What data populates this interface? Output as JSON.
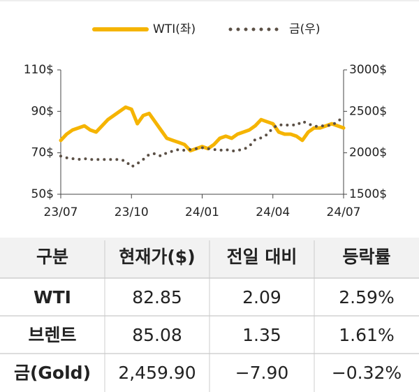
{
  "chart_data": {
    "type": "line",
    "x": [
      0,
      0.25,
      0.5,
      0.75,
      1,
      1.25,
      1.5,
      1.75,
      2,
      2.25,
      2.5,
      2.75,
      3,
      3.25,
      3.5,
      3.75,
      4,
      4.25,
      4.5,
      4.75,
      5,
      5.25,
      5.5,
      5.75,
      6,
      6.25,
      6.5,
      6.75,
      7,
      7.25,
      7.5,
      7.75,
      8,
      8.25,
      8.5,
      8.75,
      9,
      9.25,
      9.5,
      9.75,
      10,
      10.25,
      10.5,
      10.75,
      11,
      11.25,
      11.5,
      11.75,
      12
    ],
    "xlim": [
      0,
      12
    ],
    "xticks": [
      {
        "value": 0,
        "label": "23/07"
      },
      {
        "value": 3,
        "label": "23/10"
      },
      {
        "value": 6,
        "label": "24/01"
      },
      {
        "value": 9,
        "label": "24/04"
      },
      {
        "value": 12,
        "label": "24/07"
      }
    ],
    "ylim": [
      50,
      110
    ],
    "yticks": [
      {
        "value": 50,
        "label": "50$"
      },
      {
        "value": 70,
        "label": "70$"
      },
      {
        "value": 90,
        "label": "90$"
      },
      {
        "value": 110,
        "label": "110$"
      }
    ],
    "y2lim": [
      1500,
      3000
    ],
    "y2ticks": [
      {
        "value": 1500,
        "label": "1500$"
      },
      {
        "value": 2000,
        "label": "2000$"
      },
      {
        "value": 2500,
        "label": "2500$"
      },
      {
        "value": 3000,
        "label": "3000$"
      }
    ],
    "legend": "top",
    "series": [
      {
        "name": "WTI(좌)",
        "color": "#f5b400",
        "style": "solid",
        "values": [
          76,
          79,
          81,
          82,
          83,
          81,
          80,
          83,
          86,
          88,
          90,
          92,
          91,
          84,
          88,
          89,
          85,
          81,
          77,
          76,
          75,
          74,
          71,
          72,
          73,
          72,
          74,
          77,
          78,
          77,
          79,
          80,
          81,
          83,
          86,
          85,
          84,
          80,
          79,
          79,
          78,
          76,
          80,
          82,
          82,
          83,
          84,
          83,
          82
        ]
      },
      {
        "name": "금(우)",
        "color": "#5b5046",
        "style": "dotted",
        "axis": "y2",
        "values": [
          1960,
          1940,
          1930,
          1920,
          1930,
          1920,
          1920,
          1920,
          1920,
          1920,
          1920,
          1900,
          1830,
          1870,
          1920,
          1980,
          1990,
          1960,
          2000,
          2020,
          2040,
          2030,
          2040,
          2050,
          2060,
          2050,
          2040,
          2030,
          2040,
          2020,
          2030,
          2040,
          2080,
          2160,
          2180,
          2220,
          2300,
          2340,
          2330,
          2340,
          2330,
          2380,
          2350,
          2320,
          2320,
          2330,
          2330,
          2380,
          2430
        ]
      }
    ]
  },
  "table": {
    "header": [
      "구분",
      "현재가($)",
      "전일 대비",
      "등락률"
    ],
    "rows": [
      [
        "WTI",
        "82.85",
        "2.09",
        "2.59%"
      ],
      [
        "브렌트",
        "85.08",
        "1.35",
        "1.61%"
      ],
      [
        "금(Gold)",
        "2,459.90",
        "−7.90",
        "−0.32%"
      ]
    ]
  }
}
